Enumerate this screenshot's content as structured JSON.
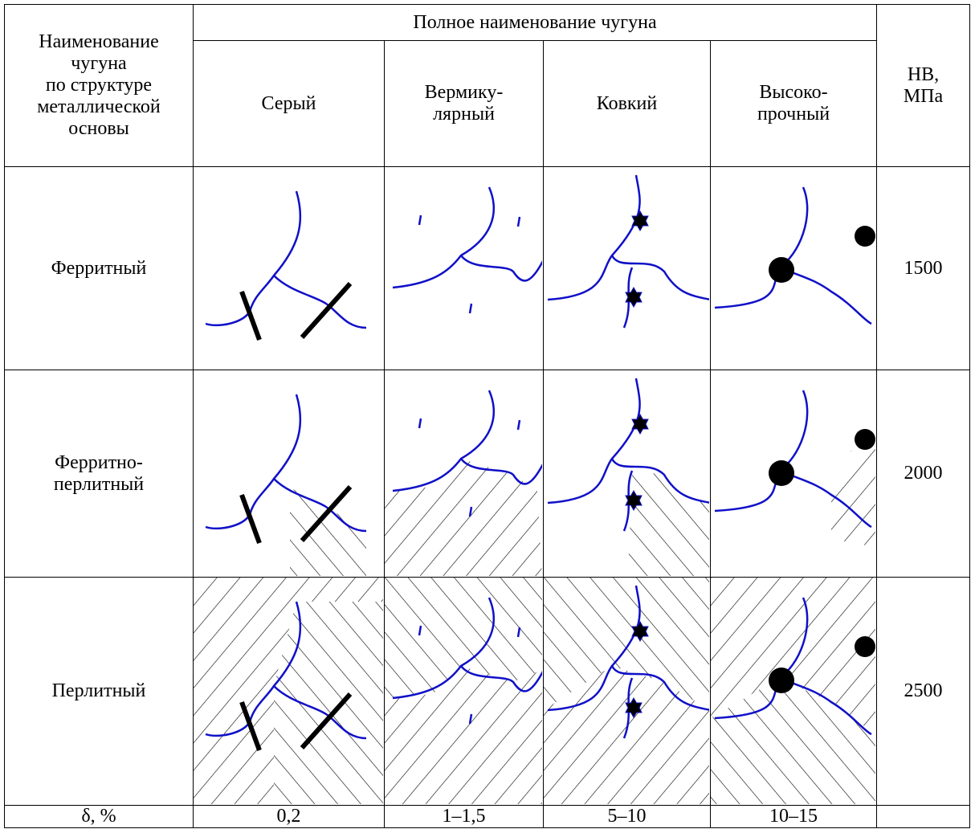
{
  "table": {
    "header": {
      "row_label": "Наименование\nчугуна\nпо структуре\nметаллической\nосновы",
      "group": "Полное наименование чугуна",
      "columns": [
        "Серый",
        "Вермику-\nлярный",
        "Ковкий",
        "Высоко-\nпрочный"
      ],
      "hardness": "НВ,\nМПа"
    },
    "rows": [
      {
        "label": "Ферритный",
        "hb": 1500
      },
      {
        "label": "Ферритно-\nперлитный",
        "hb": 2000
      },
      {
        "label": "Перлитный",
        "hb": 2500
      }
    ],
    "footer": {
      "label": "δ, %",
      "values": [
        "0,2",
        "1–1,5",
        "5–10",
        "10–15"
      ]
    }
  }
}
